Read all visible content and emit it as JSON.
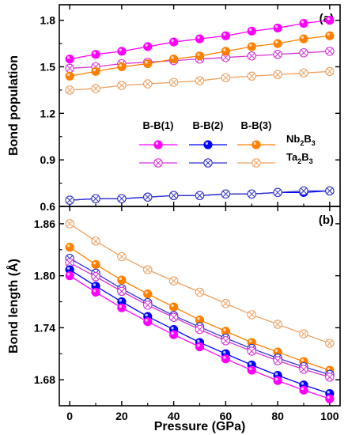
{
  "chart_data": [
    {
      "panel_label": "(a)",
      "type": "line",
      "xlabel": "",
      "ylabel": "Bond population",
      "xlim": [
        -4,
        104
      ],
      "ylim": [
        0.6,
        1.9
      ],
      "xticks": [
        0,
        20,
        40,
        60,
        80,
        100
      ],
      "yticks": [
        0.6,
        0.9,
        1.2,
        1.5,
        1.8
      ],
      "ytick_labels": [
        "0.6",
        "0.9",
        "1.2",
        "1.5",
        "1.8"
      ],
      "x": [
        0,
        10,
        20,
        30,
        40,
        50,
        60,
        70,
        80,
        90,
        100
      ],
      "series": [
        {
          "key": "bb1_nb",
          "bond": "B-B(1)",
          "compound": "Nb2B3",
          "color": "#ff00ff",
          "marker": "filled",
          "values": [
            1.55,
            1.58,
            1.6,
            1.63,
            1.66,
            1.68,
            1.7,
            1.73,
            1.75,
            1.78,
            1.8
          ]
        },
        {
          "key": "bb1_ta",
          "bond": "B-B(1)",
          "compound": "Ta2B3",
          "color": "#d633d6",
          "marker": "crossed",
          "values": [
            1.49,
            1.5,
            1.52,
            1.53,
            1.54,
            1.55,
            1.56,
            1.57,
            1.58,
            1.59,
            1.6
          ]
        },
        {
          "key": "bb3_nb",
          "bond": "B-B(3)",
          "compound": "Nb2B3",
          "color": "#ff8000",
          "marker": "filled",
          "values": [
            1.44,
            1.47,
            1.5,
            1.52,
            1.55,
            1.57,
            1.6,
            1.63,
            1.65,
            1.68,
            1.7
          ]
        },
        {
          "key": "bb3_ta",
          "bond": "B-B(3)",
          "compound": "Ta2B3",
          "color": "#f0a060",
          "marker": "crossed",
          "values": [
            1.35,
            1.36,
            1.38,
            1.39,
            1.4,
            1.41,
            1.43,
            1.44,
            1.45,
            1.46,
            1.47
          ]
        },
        {
          "key": "bb2_nb",
          "bond": "B-B(2)",
          "compound": "Nb2B3",
          "color": "#0000ff",
          "marker": "filled",
          "values": [
            0.64,
            0.65,
            0.65,
            0.66,
            0.67,
            0.67,
            0.68,
            0.68,
            0.69,
            0.69,
            0.7
          ]
        },
        {
          "key": "bb2_ta",
          "bond": "B-B(2)",
          "compound": "Ta2B3",
          "color": "#3333cc",
          "marker": "crossed",
          "values": [
            0.64,
            0.65,
            0.65,
            0.66,
            0.67,
            0.67,
            0.68,
            0.68,
            0.69,
            0.7,
            0.7
          ]
        }
      ],
      "legend": {
        "placement": "center",
        "column_labels": [
          "B-B(1)",
          "B-B(2)",
          "B-B(3)"
        ],
        "row_labels": [
          {
            "prefix": "Nb",
            "sub1": "2",
            "mid": "B",
            "sub2": "3"
          },
          {
            "prefix": "Ta",
            "sub1": "2",
            "mid": "B",
            "sub2": "3"
          }
        ]
      }
    },
    {
      "panel_label": "(b)",
      "type": "line",
      "xlabel": "Pressure (GPa)",
      "ylabel": "Bond length (Å)",
      "xlim": [
        -4,
        104
      ],
      "ylim": [
        1.65,
        1.88
      ],
      "xticks": [
        0,
        20,
        40,
        60,
        80,
        100
      ],
      "xtick_labels": [
        "0",
        "20",
        "40",
        "60",
        "80",
        "100"
      ],
      "yticks": [
        1.68,
        1.74,
        1.8,
        1.86
      ],
      "ytick_labels": [
        "1.68",
        "1.74",
        "1.80",
        "1.86"
      ],
      "x": [
        0,
        10,
        20,
        30,
        40,
        50,
        60,
        70,
        80,
        90,
        100
      ],
      "series": [
        {
          "key": "bb3_ta",
          "bond": "B-B(3)",
          "compound": "Ta2B3",
          "color": "#f0a060",
          "marker": "crossed",
          "values": [
            1.86,
            1.84,
            1.822,
            1.807,
            1.794,
            1.781,
            1.768,
            1.755,
            1.744,
            1.733,
            1.722
          ]
        },
        {
          "key": "bb3_nb",
          "bond": "B-B(3)",
          "compound": "Nb2B3",
          "color": "#ff8000",
          "marker": "filled",
          "values": [
            1.833,
            1.813,
            1.795,
            1.779,
            1.764,
            1.749,
            1.736,
            1.723,
            1.712,
            1.701,
            1.691
          ]
        },
        {
          "key": "bb2_ta",
          "bond": "B-B(2)",
          "compound": "Ta2B3",
          "color": "#3333cc",
          "marker": "crossed",
          "values": [
            1.82,
            1.803,
            1.785,
            1.769,
            1.754,
            1.741,
            1.728,
            1.716,
            1.705,
            1.695,
            1.686
          ]
        },
        {
          "key": "bb1_ta",
          "bond": "B-B(1)",
          "compound": "Ta2B3",
          "color": "#d633d6",
          "marker": "crossed",
          "values": [
            1.815,
            1.799,
            1.782,
            1.766,
            1.752,
            1.738,
            1.725,
            1.713,
            1.702,
            1.692,
            1.683
          ]
        },
        {
          "key": "bb2_nb",
          "bond": "B-B(2)",
          "compound": "Nb2B3",
          "color": "#0000ff",
          "marker": "filled",
          "values": [
            1.807,
            1.788,
            1.77,
            1.753,
            1.738,
            1.723,
            1.71,
            1.697,
            1.685,
            1.674,
            1.664
          ]
        },
        {
          "key": "bb1_nb",
          "bond": "B-B(1)",
          "compound": "Nb2B3",
          "color": "#ff00ff",
          "marker": "filled",
          "values": [
            1.8,
            1.781,
            1.763,
            1.747,
            1.732,
            1.718,
            1.704,
            1.691,
            1.679,
            1.668,
            1.658
          ]
        }
      ]
    }
  ]
}
